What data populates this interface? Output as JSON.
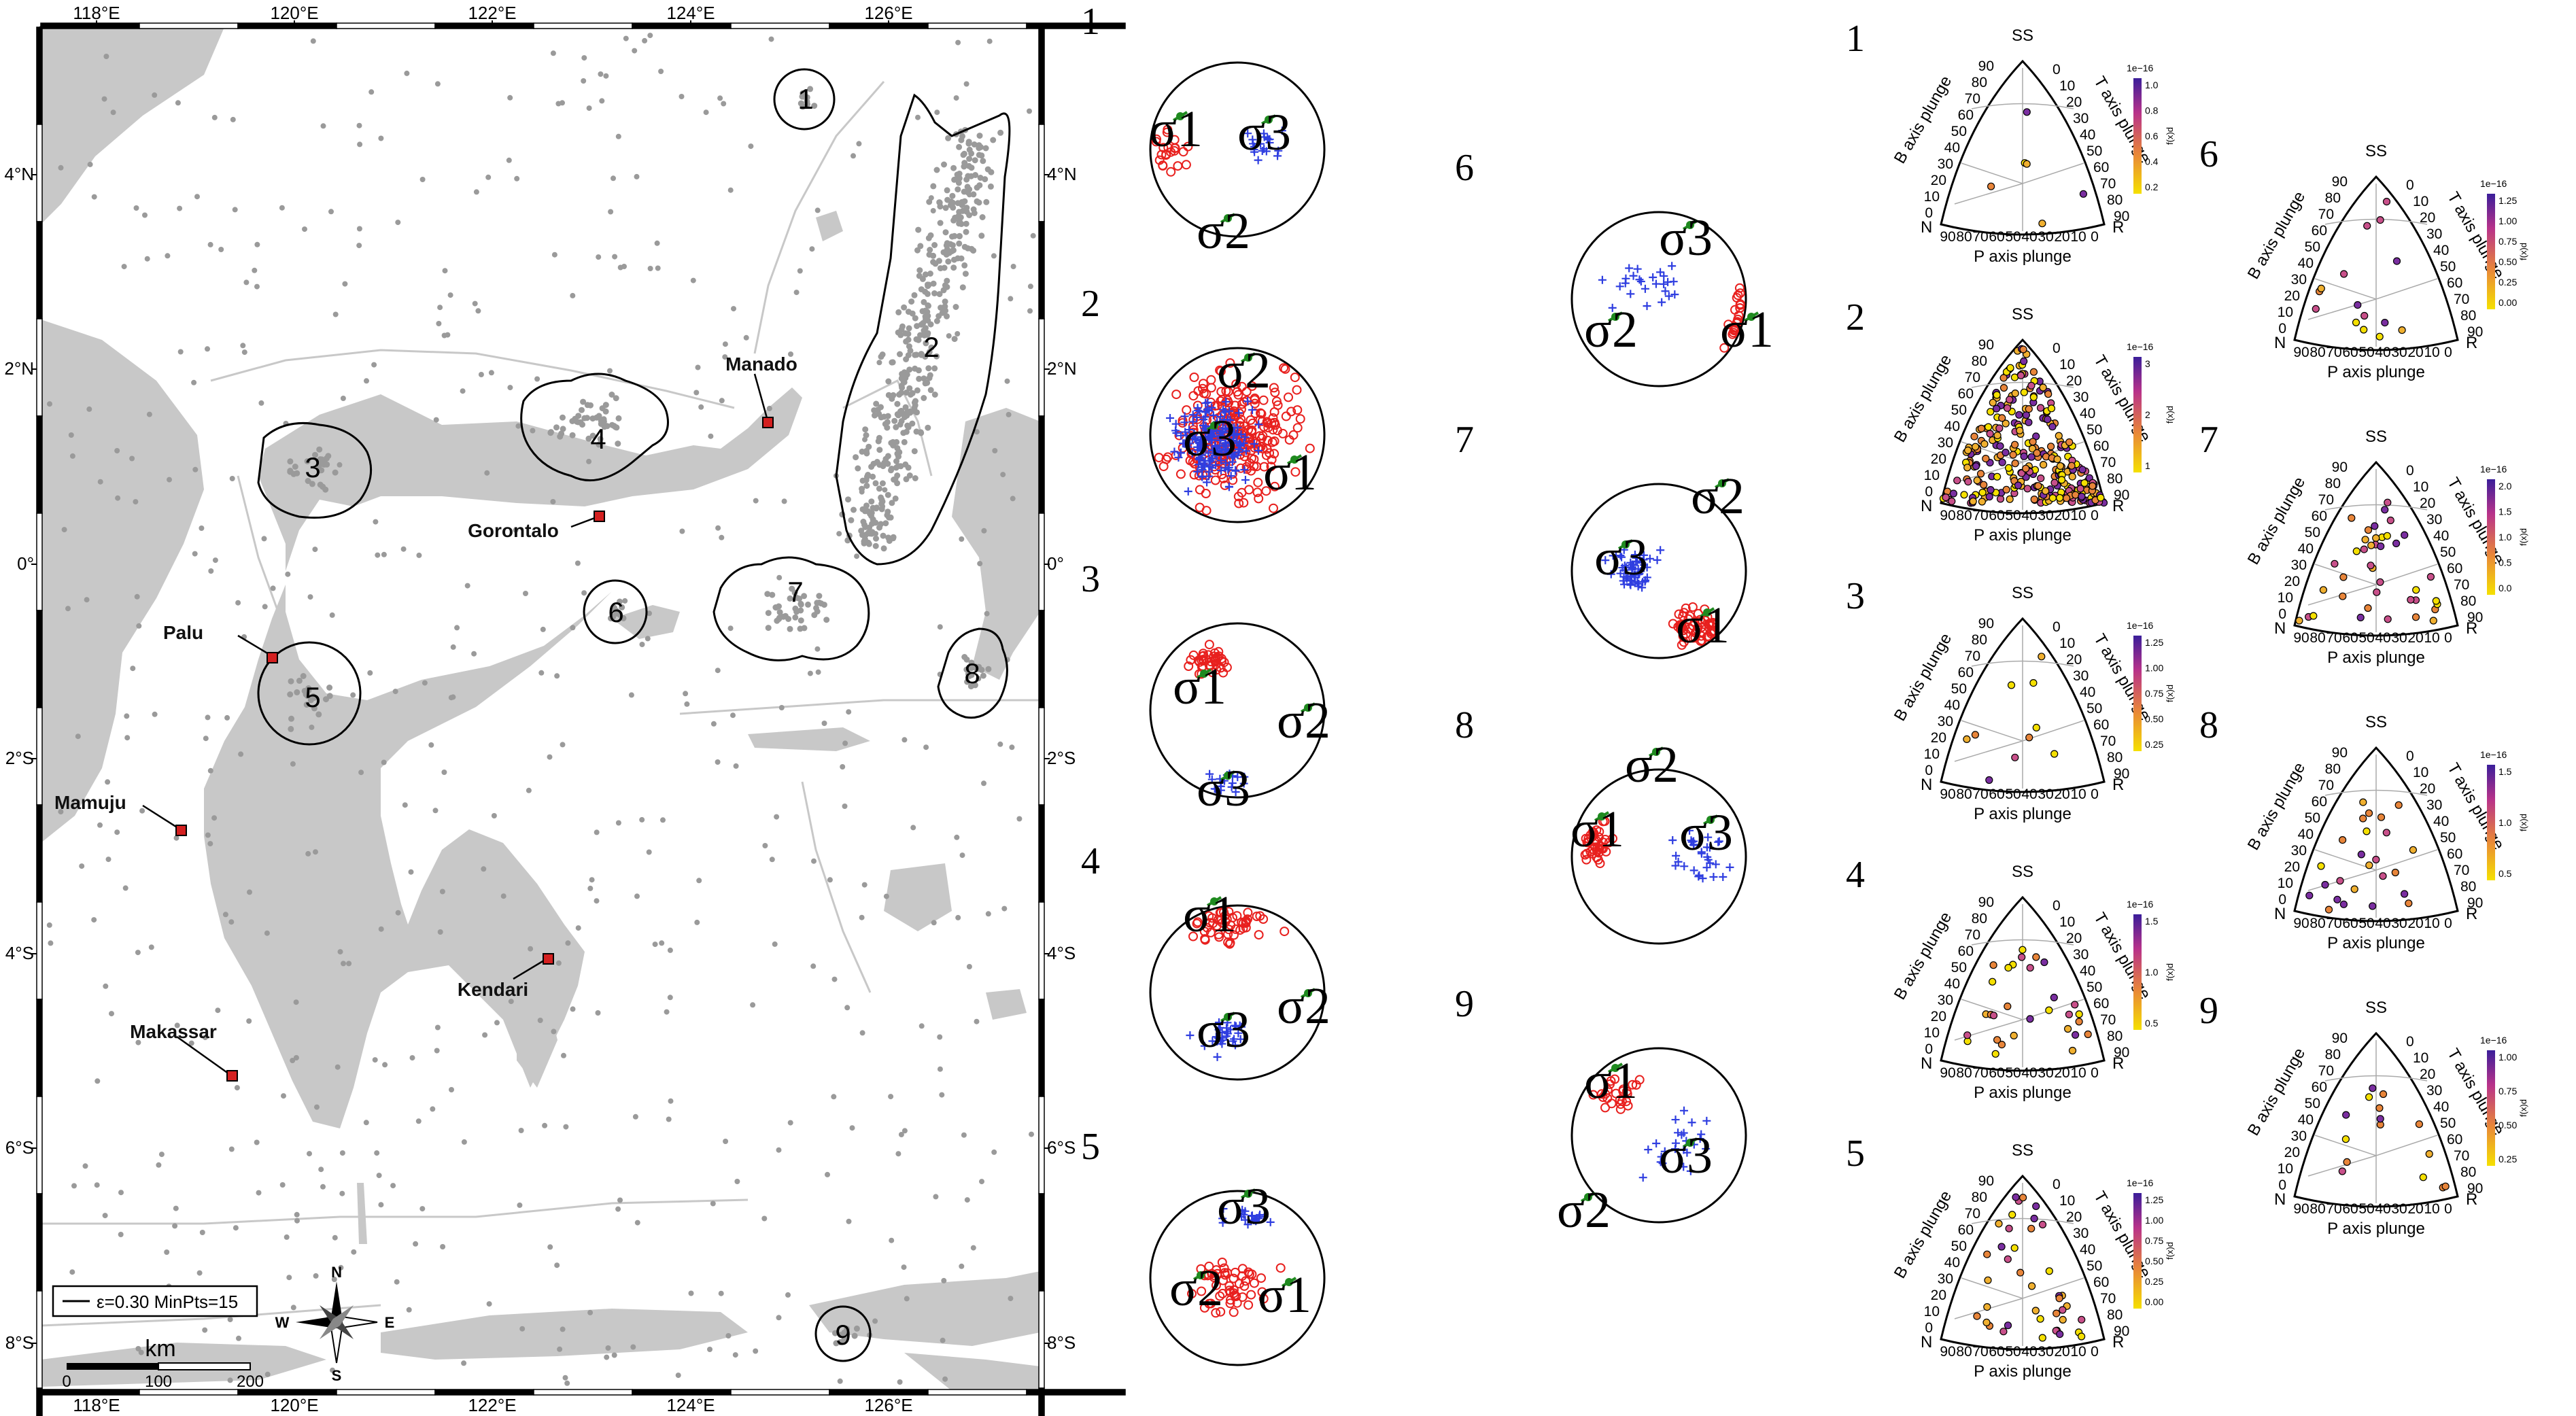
{
  "map": {
    "lon_ticks": [
      "118°E",
      "120°E",
      "122°E",
      "124°E",
      "126°E"
    ],
    "lat_ticks": [
      "4°N",
      "2°N",
      "0°",
      "2°S",
      "4°S",
      "6°S",
      "8°S"
    ],
    "cities": [
      {
        "name": "Manado",
        "lon": 124.84,
        "lat": 1.48
      },
      {
        "name": "Gorontalo",
        "lon": 123.06,
        "lat": 0.54
      },
      {
        "name": "Palu",
        "lon": 119.87,
        "lat": -0.89
      },
      {
        "name": "Mamuju",
        "lon": 118.89,
        "lat": -2.68
      },
      {
        "name": "Kendari",
        "lon": 122.51,
        "lat": -3.97
      },
      {
        "name": "Makassar",
        "lon": 119.42,
        "lat": -5.13
      }
    ],
    "clusters": [
      "1",
      "2",
      "3",
      "4",
      "5",
      "6",
      "7",
      "8",
      "9"
    ],
    "legend": "ε=0.30 MinPts=15",
    "compass": {
      "n": "N",
      "s": "S",
      "e": "E",
      "w": "W"
    },
    "scale": {
      "unit": "km",
      "ticks": [
        "0",
        "100",
        "200"
      ]
    }
  },
  "stereonets": {
    "labels": [
      "1",
      "2",
      "3",
      "4",
      "5",
      "6",
      "7",
      "8",
      "9"
    ],
    "sigma": {
      "s1": "σ1",
      "s2": "σ2",
      "s3": "σ3"
    }
  },
  "ternary": {
    "labels": [
      "1",
      "2",
      "3",
      "4",
      "5",
      "6",
      "7",
      "8",
      "9"
    ],
    "top": "SS",
    "left": "N",
    "right": "R",
    "bottom_axis": "P axis plunge",
    "left_axis": "B axis plunge",
    "right_axis": "T axis plunge",
    "colorbar_exp": "1e−16",
    "colorbar_label": "f(x)d",
    "colorbar_ticks": [
      [
        "0.2",
        "0.4",
        "0.6",
        "0.8",
        "1.0"
      ],
      [
        "1",
        "2",
        "3"
      ],
      [
        "0.25",
        "0.50",
        "0.75",
        "1.00",
        "1.25"
      ],
      [
        "0.5",
        "1.0",
        "1.5"
      ],
      [
        "0.00",
        "0.25",
        "0.50",
        "0.75",
        "1.00",
        "1.25"
      ],
      [
        "0.00",
        "0.25",
        "0.50",
        "0.75",
        "1.00",
        "1.25"
      ],
      [
        "0.0",
        "0.5",
        "1.0",
        "1.5",
        "2.0"
      ],
      [
        "0.5",
        "1.0",
        "1.5"
      ],
      [
        "0.25",
        "0.50",
        "0.75",
        "1.00"
      ]
    ],
    "plunge_ticks": [
      "90",
      "80",
      "70",
      "60",
      "50",
      "40",
      "30",
      "20",
      "10",
      "0"
    ]
  },
  "colors": {
    "land": "#c8c8c8",
    "sea": "#ffffff",
    "event": "#9a9a9a",
    "pole_p": "#e8201e",
    "pole_t": "#2f3ee0",
    "green": "#1f8a1f",
    "city": "#d42020"
  }
}
